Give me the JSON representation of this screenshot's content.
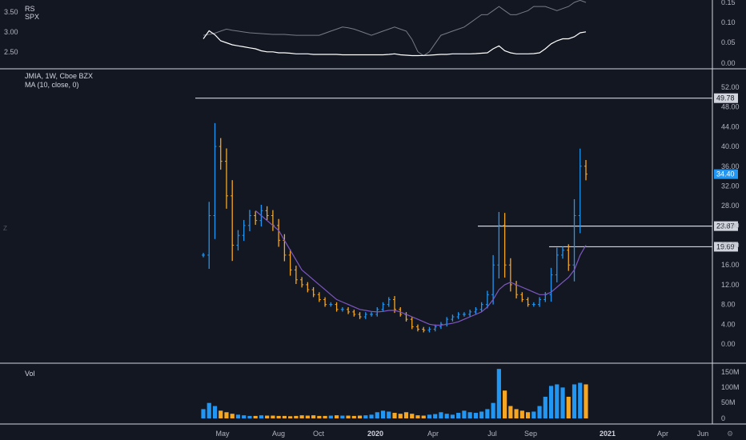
{
  "rs_pane": {
    "title": "RS",
    "subtitle": "SPX",
    "left_ticks": [
      "3.50",
      "3.00",
      "2.50"
    ],
    "right_ticks": [
      "0.15",
      "0.10",
      "0.05",
      "0.00"
    ]
  },
  "price_pane": {
    "title": "JMIA, 1W, Cboe BZX",
    "subtitle": "MA (10, close, 0)",
    "right_ticks": [
      "52.00",
      "48.00",
      "44.00",
      "40.00",
      "36.00",
      "32.00",
      "28.00",
      "24.00",
      "20.00",
      "16.00",
      "12.00",
      "8.00",
      "4.00",
      "0.00"
    ],
    "levels": [
      {
        "label": "49.78",
        "value": 49.78
      },
      {
        "label": "23.87",
        "value": 23.87
      },
      {
        "label": "19.69",
        "value": 19.69
      }
    ],
    "last_price": {
      "label": "34.40",
      "value": 34.4,
      "color": "#2196f3"
    }
  },
  "volume_pane": {
    "title": "Vol",
    "right_ticks": [
      "150M",
      "100M",
      "50M",
      "0"
    ]
  },
  "time_axis": {
    "labels": [
      "May",
      "Aug",
      "Oct",
      "2020",
      "Apr",
      "Jul",
      "Sep",
      "2021",
      "Apr",
      "Jun"
    ]
  },
  "chart_data": {
    "type": "line",
    "symbol": "JMIA",
    "interval": "1W",
    "exchange": "Cboe BZX",
    "y_range": [
      -4,
      54
    ],
    "close": [
      18,
      26,
      40,
      37,
      30,
      20,
      22,
      24,
      26,
      25,
      27,
      26,
      24,
      21,
      18,
      15,
      13,
      12,
      11,
      10,
      9,
      8,
      8,
      7,
      7,
      6.5,
      6,
      5.5,
      6,
      6,
      7,
      8,
      9,
      7,
      6,
      5,
      3.5,
      3,
      2.8,
      3,
      3.5,
      4,
      5,
      5.5,
      6,
      6,
      6.5,
      7,
      8,
      10,
      16,
      24,
      16,
      12,
      10,
      9,
      8,
      8,
      9,
      10,
      14,
      18,
      19,
      16,
      26,
      36,
      34.4
    ],
    "ma10": [
      null,
      null,
      null,
      null,
      null,
      null,
      null,
      null,
      null,
      27,
      26,
      25,
      24,
      23,
      21,
      19,
      17,
      15,
      14,
      13,
      12,
      11,
      10,
      9,
      8.5,
      8,
      7.5,
      7,
      6.8,
      6.6,
      6.5,
      6.6,
      6.8,
      6.8,
      6.5,
      6,
      5.5,
      5,
      4.5,
      4,
      3.8,
      3.8,
      4,
      4.2,
      4.5,
      5,
      5.5,
      6,
      6.5,
      7.5,
      9,
      11,
      12,
      12.5,
      12,
      11.5,
      11,
      10.5,
      10,
      10,
      10.5,
      11.5,
      12.5,
      13.5,
      15,
      18,
      20
    ],
    "volume_m": [
      30,
      50,
      40,
      25,
      20,
      15,
      12,
      10,
      8,
      8,
      10,
      9,
      9,
      8,
      8,
      7,
      8,
      10,
      9,
      10,
      8,
      8,
      9,
      10,
      9,
      9,
      8,
      9,
      10,
      12,
      20,
      25,
      22,
      18,
      15,
      20,
      15,
      10,
      9,
      12,
      14,
      20,
      15,
      12,
      18,
      25,
      20,
      18,
      22,
      30,
      50,
      160,
      90,
      40,
      30,
      25,
      20,
      22,
      40,
      70,
      105,
      110,
      100,
      70,
      110,
      115,
      110
    ],
    "rs_line": [
      3.2,
      3.6,
      3.4,
      3.1,
      3.0,
      2.9,
      2.85,
      2.8,
      2.75,
      2.7,
      2.6,
      2.55,
      2.55,
      2.5,
      2.5,
      2.48,
      2.45,
      2.45,
      2.45,
      2.42,
      2.42,
      2.42,
      2.42,
      2.42,
      2.4,
      2.4,
      2.4,
      2.4,
      2.4,
      2.4,
      2.4,
      2.4,
      2.42,
      2.45,
      2.4,
      2.38,
      2.36,
      2.36,
      2.37,
      2.38,
      2.4,
      2.42,
      2.42,
      2.45,
      2.45,
      2.45,
      2.45,
      2.46,
      2.48,
      2.5,
      2.7,
      2.85,
      2.6,
      2.5,
      2.45,
      2.45,
      2.45,
      2.46,
      2.5,
      2.7,
      2.95,
      3.1,
      3.2,
      3.2,
      3.3,
      3.5,
      3.55
    ],
    "spx_line": [
      0.07,
      0.072,
      0.075,
      0.08,
      0.085,
      0.082,
      0.08,
      0.078,
      0.076,
      0.075,
      0.074,
      0.073,
      0.072,
      0.072,
      0.072,
      0.071,
      0.07,
      0.07,
      0.07,
      0.07,
      0.07,
      0.075,
      0.08,
      0.085,
      0.09,
      0.088,
      0.085,
      0.08,
      0.075,
      0.07,
      0.075,
      0.08,
      0.085,
      0.09,
      0.085,
      0.08,
      0.06,
      0.03,
      0.02,
      0.03,
      0.05,
      0.07,
      0.075,
      0.08,
      0.085,
      0.09,
      0.1,
      0.11,
      0.12,
      0.12,
      0.13,
      0.14,
      0.13,
      0.12,
      0.12,
      0.125,
      0.13,
      0.14,
      0.14,
      0.14,
      0.135,
      0.13,
      0.135,
      0.14,
      0.15,
      0.155,
      0.15
    ]
  }
}
